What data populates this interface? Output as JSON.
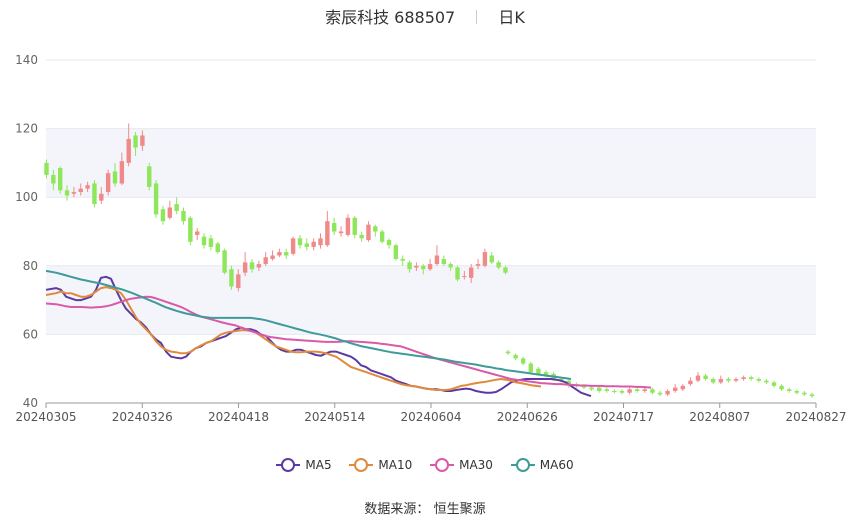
{
  "header": {
    "title": "索辰科技 688507",
    "period": "日K"
  },
  "footer": {
    "source_label": "数据来源：",
    "source_name": "恒生聚源"
  },
  "colors": {
    "up": "#f08a8a",
    "down": "#8ee65a",
    "MA5": "#5b3aa3",
    "MA10": "#e08a3c",
    "MA30": "#d95aa8",
    "MA60": "#3f9a9a",
    "grid": "#e6e9f0",
    "band": "#f3f5fb"
  },
  "chart_data": {
    "type": "candlestick",
    "ylim": [
      40,
      140
    ],
    "yticks": [
      40,
      60,
      80,
      100,
      120,
      140
    ],
    "xticks": [
      "20240305",
      "20240326",
      "20240418",
      "20240514",
      "20240604",
      "20240626",
      "20240717",
      "20240807",
      "20240827"
    ],
    "legend": [
      "MA5",
      "MA10",
      "MA30",
      "MA60"
    ],
    "candles": [
      [
        110.0,
        106.5,
        111.0,
        105.5
      ],
      [
        106.5,
        104.0,
        108.0,
        102.0
      ],
      [
        108.5,
        102.0,
        109.0,
        101.0
      ],
      [
        102.0,
        100.5,
        103.5,
        99.0
      ],
      [
        101.0,
        101.5,
        103.0,
        100.0
      ],
      [
        101.5,
        102.5,
        104.0,
        100.5
      ],
      [
        102.5,
        103.5,
        104.5,
        101.5
      ],
      [
        104.0,
        98.0,
        105.0,
        97.0
      ],
      [
        99.0,
        101.0,
        103.0,
        98.0
      ],
      [
        101.5,
        107.0,
        108.0,
        100.5
      ],
      [
        107.5,
        104.0,
        110.0,
        103.0
      ],
      [
        104.0,
        110.5,
        113.0,
        103.5
      ],
      [
        110.0,
        117.0,
        121.5,
        109.0
      ],
      [
        118.0,
        114.5,
        119.0,
        112.0
      ],
      [
        115.0,
        118.0,
        119.5,
        113.5
      ],
      [
        109.0,
        103.0,
        110.0,
        102.0
      ],
      [
        104.0,
        95.0,
        105.0,
        94.0
      ],
      [
        96.5,
        93.0,
        97.5,
        92.0
      ],
      [
        94.0,
        97.0,
        99.0,
        93.5
      ],
      [
        98.0,
        96.0,
        100.0,
        95.0
      ],
      [
        96.0,
        93.0,
        97.0,
        92.0
      ],
      [
        94.0,
        87.0,
        94.5,
        86.0
      ],
      [
        89.0,
        90.0,
        91.0,
        87.5
      ],
      [
        88.5,
        86.0,
        89.5,
        85.0
      ],
      [
        88.0,
        85.5,
        89.0,
        84.5
      ],
      [
        86.5,
        84.0,
        87.0,
        83.5
      ],
      [
        84.5,
        78.0,
        85.0,
        77.5
      ],
      [
        79.0,
        74.0,
        80.0,
        73.0
      ],
      [
        73.5,
        77.5,
        79.0,
        72.5
      ],
      [
        78.0,
        81.0,
        84.0,
        77.0
      ],
      [
        81.0,
        79.0,
        82.0,
        78.0
      ],
      [
        79.5,
        80.5,
        81.5,
        78.5
      ],
      [
        80.5,
        82.5,
        84.0,
        80.0
      ],
      [
        82.0,
        83.0,
        84.5,
        81.5
      ],
      [
        83.0,
        84.0,
        85.0,
        82.5
      ],
      [
        84.0,
        83.0,
        85.0,
        82.0
      ],
      [
        83.5,
        88.0,
        88.5,
        83.0
      ],
      [
        88.0,
        86.0,
        89.0,
        85.0
      ],
      [
        86.5,
        85.5,
        88.0,
        84.5
      ],
      [
        85.5,
        87.0,
        88.0,
        84.5
      ],
      [
        86.0,
        88.0,
        89.5,
        85.0
      ],
      [
        86.0,
        93.0,
        96.0,
        85.5
      ],
      [
        92.5,
        90.0,
        94.0,
        89.0
      ],
      [
        89.5,
        90.0,
        91.5,
        88.5
      ],
      [
        89.0,
        94.0,
        95.0,
        88.5
      ],
      [
        94.0,
        89.0,
        94.5,
        88.0
      ],
      [
        89.0,
        88.0,
        90.0,
        87.0
      ],
      [
        87.5,
        92.0,
        93.0,
        87.0
      ],
      [
        91.5,
        90.0,
        92.0,
        88.5
      ],
      [
        90.0,
        87.0,
        90.5,
        86.5
      ],
      [
        87.5,
        86.0,
        88.0,
        85.0
      ],
      [
        86.0,
        82.0,
        86.5,
        81.5
      ],
      [
        82.0,
        81.5,
        83.0,
        80.0
      ],
      [
        81.0,
        79.0,
        81.5,
        78.0
      ],
      [
        79.5,
        80.0,
        81.0,
        78.5
      ],
      [
        80.0,
        79.0,
        80.5,
        77.5
      ],
      [
        79.0,
        80.5,
        82.0,
        78.5
      ],
      [
        80.5,
        83.0,
        86.0,
        80.0
      ],
      [
        82.0,
        80.5,
        83.0,
        80.0
      ],
      [
        80.5,
        79.5,
        81.0,
        78.5
      ],
      [
        79.5,
        76.0,
        80.0,
        75.5
      ],
      [
        77.0,
        77.0,
        78.5,
        76.0
      ],
      [
        76.5,
        79.5,
        80.5,
        75.0
      ],
      [
        80.0,
        80.5,
        82.0,
        79.0
      ],
      [
        80.0,
        84.0,
        85.0,
        79.5
      ],
      [
        83.0,
        81.0,
        84.0,
        80.5
      ],
      [
        81.0,
        79.5,
        81.5,
        79.0
      ],
      [
        79.5,
        78.0,
        80.0,
        77.5
      ]
    ],
    "ma_x": [
      0,
      10,
      15,
      20,
      25,
      30,
      35,
      40,
      45,
      50,
      55,
      60,
      65,
      70,
      75,
      80,
      85,
      90,
      95,
      100,
      105,
      110,
      115,
      120,
      125,
      130,
      135,
      140,
      145,
      150,
      155,
      160,
      165,
      170,
      175,
      180,
      185,
      190,
      195,
      200,
      205,
      210,
      215,
      220,
      225,
      230,
      235,
      240,
      245,
      250,
      255,
      260,
      265,
      270,
      275,
      280,
      285,
      290,
      295,
      300,
      305,
      310,
      315,
      320,
      325,
      330,
      335,
      340,
      345,
      350,
      355,
      360,
      365,
      370,
      375,
      380,
      385,
      390,
      395,
      400,
      405,
      410,
      415,
      420,
      425,
      430,
      435,
      440,
      445,
      450,
      455,
      460,
      465,
      470,
      475,
      480,
      485,
      490,
      495,
      500,
      505,
      510,
      515,
      520,
      525,
      530,
      535,
      540,
      545,
      550,
      555,
      560,
      565,
      570,
      575,
      580,
      585,
      590,
      595,
      600,
      605,
      610,
      615,
      620,
      625,
      630,
      635,
      640,
      645,
      650,
      655,
      660,
      665,
      670,
      675,
      680,
      685,
      690,
      695,
      700,
      705,
      710,
      715,
      720,
      725,
      730,
      735,
      740,
      745,
      750,
      755,
      760,
      765,
      770
    ],
    "ma": {
      "MA5": [
        73.0,
        73.5,
        73.0,
        71.0,
        70.5,
        70.0,
        70.0,
        70.5,
        71.0,
        73.0,
        76.5,
        76.8,
        76.2,
        73.0,
        70.0,
        67.5,
        66.0,
        64.5,
        63.5,
        62.0,
        60.0,
        58.5,
        57.5,
        55.0,
        53.5,
        53.2,
        53.0,
        53.5,
        55.0,
        56.0,
        56.5,
        57.5,
        58.0,
        58.5,
        59.0,
        59.5,
        60.5,
        61.5,
        62.0,
        61.5,
        61.5,
        61.0,
        60.0,
        59.5,
        58.0,
        56.5,
        55.5,
        55.0,
        55.0,
        55.5,
        55.5,
        55.0,
        54.5,
        54.0,
        53.8,
        54.5,
        55.0,
        55.0,
        54.5,
        54.0,
        53.5,
        52.5,
        51.0,
        50.5,
        49.5,
        49.0,
        48.5,
        48.0,
        47.5,
        46.5,
        46.0,
        45.5,
        45.0,
        44.8,
        44.5,
        44.2,
        44.0,
        44.0,
        43.8,
        43.5,
        43.5,
        43.8,
        44.0,
        44.2,
        44.0,
        43.5,
        43.2,
        43.0,
        43.0,
        43.2,
        44.0,
        45.0,
        46.0,
        46.5,
        46.8,
        47.0,
        47.0,
        47.0,
        47.0,
        47.0,
        47.0,
        46.8,
        46.5,
        46.0,
        45.0,
        44.0,
        43.0,
        42.5,
        42.0
      ],
      "MA10": [
        71.5,
        72.0,
        72.5,
        72.0,
        72.0,
        71.5,
        71.0,
        71.0,
        71.5,
        72.5,
        73.5,
        73.8,
        73.5,
        73.0,
        72.0,
        70.0,
        67.5,
        65.0,
        63.0,
        61.5,
        60.0,
        58.0,
        56.5,
        55.5,
        55.0,
        54.8,
        54.5,
        54.5,
        55.0,
        56.0,
        56.8,
        57.5,
        58.0,
        59.0,
        60.0,
        60.5,
        60.8,
        61.0,
        61.2,
        61.2,
        61.0,
        60.5,
        59.5,
        58.5,
        57.5,
        56.5,
        56.0,
        55.5,
        55.0,
        54.8,
        54.8,
        55.0,
        55.0,
        55.0,
        54.8,
        54.5,
        54.0,
        53.5,
        52.5,
        51.5,
        50.5,
        50.0,
        49.5,
        49.0,
        48.5,
        48.0,
        47.5,
        47.0,
        46.5,
        46.0,
        45.5,
        45.2,
        45.0,
        44.8,
        44.5,
        44.2,
        44.0,
        43.8,
        43.8,
        43.8,
        44.0,
        44.5,
        45.0,
        45.2,
        45.5,
        45.8,
        46.0,
        46.2,
        46.5,
        46.8,
        47.0,
        46.8,
        46.5,
        46.0,
        45.8,
        45.5,
        45.2,
        45.0,
        44.8
      ],
      "MA30": [
        69.0,
        68.8,
        68.5,
        68.2,
        68.0,
        68.0,
        68.0,
        67.9,
        67.8,
        67.9,
        68.0,
        68.2,
        68.5,
        69.0,
        69.5,
        70.0,
        70.4,
        70.6,
        70.8,
        71.0,
        70.9,
        70.5,
        70.0,
        69.5,
        69.0,
        68.5,
        68.0,
        67.3,
        66.5,
        65.8,
        65.2,
        64.8,
        64.4,
        64.0,
        63.6,
        63.2,
        62.9,
        62.6,
        62.0,
        61.5,
        61.0,
        60.5,
        60.0,
        59.5,
        59.2,
        59.0,
        58.8,
        58.6,
        58.5,
        58.4,
        58.3,
        58.2,
        58.1,
        58.0,
        57.9,
        57.8,
        57.8,
        57.8,
        57.9,
        58.0,
        58.0,
        57.9,
        57.8,
        57.7,
        57.6,
        57.5,
        57.3,
        57.1,
        56.9,
        56.7,
        56.5,
        56.0,
        55.5,
        55.0,
        54.5,
        54.0,
        53.5,
        53.0,
        52.6,
        52.2,
        51.8,
        51.4,
        51.0,
        50.6,
        50.2,
        49.8,
        49.4,
        49.0,
        48.6,
        48.2,
        47.8,
        47.4,
        47.0,
        46.8,
        46.6,
        46.4,
        46.2,
        46.0,
        45.8,
        45.7,
        45.6,
        45.5,
        45.5,
        45.4,
        45.3,
        45.2,
        45.1,
        45.1,
        45.0,
        45.0,
        45.0,
        44.9,
        44.9,
        44.9,
        44.8,
        44.8,
        44.8,
        44.7,
        44.7,
        44.6,
        44.5
      ],
      "MA60": [
        78.5,
        78.0,
        77.6,
        77.2,
        76.8,
        76.4,
        76.0,
        75.7,
        75.4,
        75.1,
        74.8,
        74.4,
        74.0,
        73.6,
        73.2,
        72.7,
        72.2,
        71.6,
        71.0,
        70.4,
        69.8,
        69.2,
        68.5,
        67.9,
        67.4,
        66.9,
        66.5,
        66.1,
        65.8,
        65.5,
        65.2,
        65.0,
        64.8,
        64.8,
        64.8,
        64.8,
        64.8,
        64.8,
        64.8,
        64.8,
        64.8,
        64.6,
        64.4,
        64.1,
        63.7,
        63.3,
        62.9,
        62.5,
        62.1,
        61.7,
        61.3,
        60.9,
        60.5,
        60.2,
        59.9,
        59.6,
        59.2,
        58.8,
        58.3,
        57.9,
        57.4,
        57.0,
        56.6,
        56.3,
        56.0,
        55.7,
        55.4,
        55.1,
        54.8,
        54.6,
        54.4,
        54.2,
        54.0,
        53.8,
        53.6,
        53.4,
        53.2,
        53.0,
        52.8,
        52.6,
        52.3,
        52.0,
        51.8,
        51.6,
        51.4,
        51.2,
        50.9,
        50.6,
        50.4,
        50.1,
        49.9,
        49.6,
        49.4,
        49.2,
        49.0,
        48.8,
        48.6,
        48.4,
        48.2,
        48.0,
        47.8,
        47.6,
        47.4,
        47.2,
        47.0
      ]
    },
    "tail": [
      [
        55.0,
        54.5,
        55.5,
        54.0
      ],
      [
        54.0,
        53.0,
        54.5,
        52.5
      ],
      [
        53.0,
        51.5,
        53.5,
        51.0
      ],
      [
        51.5,
        49.0,
        52.0,
        48.5
      ],
      [
        50.0,
        48.5,
        50.5,
        48.0
      ],
      [
        49.0,
        48.0,
        49.5,
        47.5
      ],
      [
        48.5,
        47.0,
        49.0,
        46.5
      ],
      [
        47.0,
        46.5,
        47.5,
        46.0
      ],
      [
        46.5,
        45.0,
        47.0,
        44.5
      ],
      [
        45.5,
        45.0,
        46.0,
        44.5
      ],
      [
        45.0,
        44.5,
        45.5,
        44.0
      ],
      [
        44.5,
        44.0,
        45.0,
        43.5
      ],
      [
        44.5,
        43.5,
        45.0,
        43.0
      ],
      [
        44.0,
        43.5,
        44.5,
        43.0
      ],
      [
        43.5,
        43.2,
        44.0,
        42.8
      ],
      [
        43.5,
        43.0,
        44.0,
        42.5
      ],
      [
        43.0,
        44.0,
        45.0,
        42.5
      ],
      [
        44.0,
        43.5,
        44.5,
        43.0
      ],
      [
        43.5,
        44.0,
        45.0,
        43.0
      ],
      [
        44.0,
        43.0,
        44.5,
        42.5
      ],
      [
        43.0,
        42.5,
        43.5,
        42.0
      ],
      [
        42.5,
        43.5,
        44.0,
        42.0
      ],
      [
        43.5,
        44.5,
        45.5,
        43.0
      ],
      [
        44.0,
        45.0,
        45.5,
        43.5
      ],
      [
        45.5,
        46.5,
        47.5,
        45.0
      ],
      [
        46.5,
        48.0,
        49.0,
        46.0
      ],
      [
        48.0,
        47.0,
        48.5,
        46.5
      ],
      [
        47.0,
        46.0,
        47.5,
        45.5
      ],
      [
        46.0,
        47.0,
        48.0,
        45.5
      ],
      [
        47.0,
        46.5,
        47.5,
        46.0
      ],
      [
        46.5,
        47.0,
        47.5,
        46.0
      ],
      [
        47.0,
        47.5,
        48.0,
        46.5
      ],
      [
        47.5,
        47.0,
        48.0,
        46.5
      ],
      [
        47.0,
        46.5,
        47.5,
        46.0
      ],
      [
        46.5,
        46.0,
        47.0,
        45.5
      ],
      [
        46.0,
        45.0,
        46.5,
        44.5
      ],
      [
        45.0,
        44.0,
        45.5,
        43.5
      ],
      [
        44.0,
        43.5,
        44.5,
        43.0
      ],
      [
        43.5,
        43.0,
        44.0,
        42.5
      ],
      [
        43.0,
        42.5,
        43.5,
        42.0
      ],
      [
        42.5,
        42.0,
        43.0,
        41.5
      ]
    ]
  }
}
